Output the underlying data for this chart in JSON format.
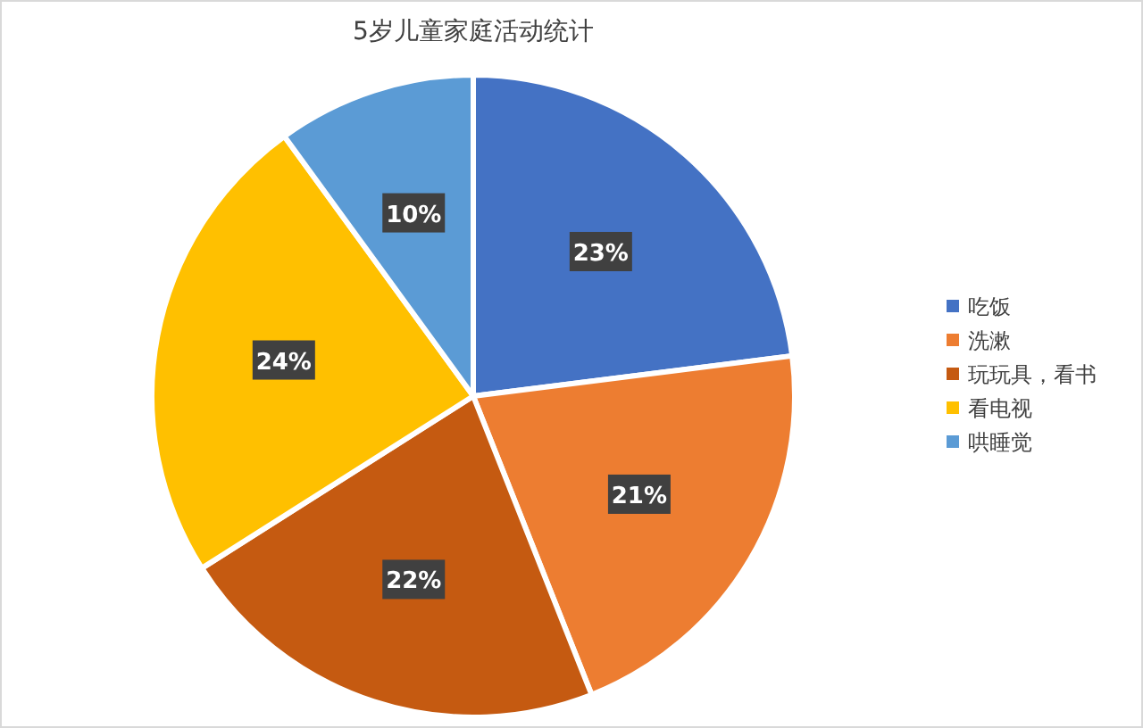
{
  "chart_data": {
    "type": "pie",
    "title": "5岁儿童家庭活动统计",
    "categories": [
      "吃饭",
      "洗漱",
      "玩玩具，看书",
      "看电视",
      "哄睡觉"
    ],
    "values": [
      23,
      21,
      22,
      24,
      10
    ],
    "colors": [
      "#4472c4",
      "#ed7d31",
      "#c55a11",
      "#ffc000",
      "#5b9bd5"
    ],
    "value_labels": [
      "23%",
      "21%",
      "22%",
      "24%",
      "10%"
    ],
    "legend": "right"
  }
}
